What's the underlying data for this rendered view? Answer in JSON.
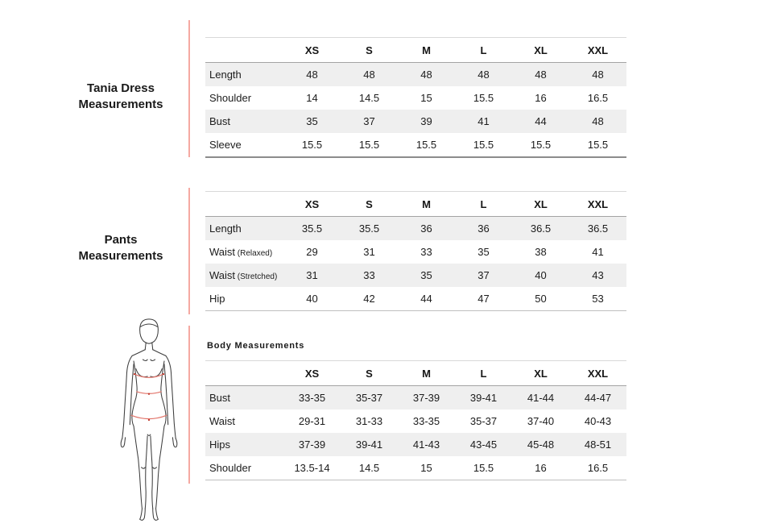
{
  "theme": {
    "accent_color": "#f5a9a2",
    "stripe_color": "#efefef",
    "measure_line_color": "#e2756b",
    "text_color": "#1f1f1f"
  },
  "left_panel": {
    "dress_label_line1": "Tania Dress",
    "dress_label_line2": "Measurements",
    "pants_label_line1": "Pants",
    "pants_label_line2": "Measurements",
    "figure_icon": "female-body-outline-with-bust-waist-hip-measure-lines"
  },
  "tables": [
    {
      "id": "tania-dress-measurements",
      "title": "",
      "columns": [
        "XS",
        "S",
        "M",
        "L",
        "XL",
        "XXL"
      ],
      "rows": [
        {
          "label": "Length",
          "note": "",
          "values": [
            "48",
            "48",
            "48",
            "48",
            "48",
            "48"
          ]
        },
        {
          "label": "Shoulder",
          "note": "",
          "values": [
            "14",
            "14.5",
            "15",
            "15.5",
            "16",
            "16.5"
          ]
        },
        {
          "label": "Bust",
          "note": "",
          "values": [
            "35",
            "37",
            "39",
            "41",
            "44",
            "48"
          ]
        },
        {
          "label": "Sleeve",
          "note": "",
          "values": [
            "15.5",
            "15.5",
            "15.5",
            "15.5",
            "15.5",
            "15.5"
          ]
        }
      ]
    },
    {
      "id": "pants-measurements",
      "title": "",
      "columns": [
        "XS",
        "S",
        "M",
        "L",
        "XL",
        "XXL"
      ],
      "rows": [
        {
          "label": "Length",
          "note": "",
          "values": [
            "35.5",
            "35.5",
            "36",
            "36",
            "36.5",
            "36.5"
          ]
        },
        {
          "label": "Waist",
          "note": "(Relaxed)",
          "values": [
            "29",
            "31",
            "33",
            "35",
            "38",
            "41"
          ]
        },
        {
          "label": "Waist",
          "note": "(Stretched)",
          "values": [
            "31",
            "33",
            "35",
            "37",
            "40",
            "43"
          ]
        },
        {
          "label": "Hip",
          "note": "",
          "values": [
            "40",
            "42",
            "44",
            "47",
            "50",
            "53"
          ]
        }
      ]
    },
    {
      "id": "body-measurements",
      "title": "Body Measurements",
      "columns": [
        "XS",
        "S",
        "M",
        "L",
        "XL",
        "XXL"
      ],
      "rows": [
        {
          "label": "Bust",
          "note": "",
          "values": [
            "33-35",
            "35-37",
            "37-39",
            "39-41",
            "41-44",
            "44-47"
          ]
        },
        {
          "label": "Waist",
          "note": "",
          "values": [
            "29-31",
            "31-33",
            "33-35",
            "35-37",
            "37-40",
            "40-43"
          ]
        },
        {
          "label": "Hips",
          "note": "",
          "values": [
            "37-39",
            "39-41",
            "41-43",
            "43-45",
            "45-48",
            "48-51"
          ]
        },
        {
          "label": "Shoulder",
          "note": "",
          "values": [
            "13.5-14",
            "14.5",
            "15",
            "15.5",
            "16",
            "16.5"
          ]
        }
      ]
    }
  ]
}
